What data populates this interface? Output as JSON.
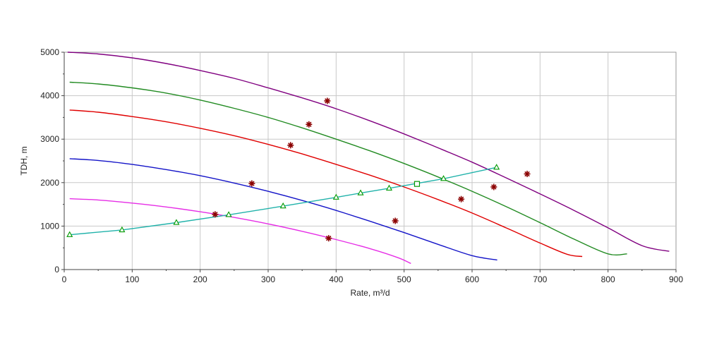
{
  "chart_data": {
    "type": "line",
    "title": "",
    "xlabel": "Rate, m³/d",
    "ylabel": "TDH, m",
    "xlim": [
      0,
      900
    ],
    "ylim": [
      0,
      5000
    ],
    "x_ticks": [
      0,
      100,
      200,
      300,
      400,
      500,
      600,
      700,
      800,
      900
    ],
    "y_ticks": [
      0,
      1000,
      2000,
      3000,
      4000,
      5000
    ],
    "x_tick_labels": [
      "0",
      "100",
      "200",
      "300",
      "400",
      "500",
      "600",
      "700",
      "800",
      "900"
    ],
    "y_tick_labels": [
      "0",
      "1000",
      "2000",
      "3000",
      "4000",
      "5000"
    ],
    "grid": true,
    "legend": "none",
    "series": [
      {
        "kind": "pump-curve",
        "color": "#800080",
        "points": [
          [
            5,
            5000
          ],
          [
            50,
            4960
          ],
          [
            100,
            4870
          ],
          [
            150,
            4740
          ],
          [
            200,
            4580
          ],
          [
            250,
            4400
          ],
          [
            300,
            4180
          ],
          [
            350,
            3950
          ],
          [
            400,
            3700
          ],
          [
            450,
            3420
          ],
          [
            500,
            3120
          ],
          [
            550,
            2800
          ],
          [
            600,
            2470
          ],
          [
            650,
            2110
          ],
          [
            700,
            1740
          ],
          [
            750,
            1360
          ],
          [
            800,
            960
          ],
          [
            850,
            550
          ],
          [
            890,
            420
          ]
        ],
        "markers": [
          [
            387,
            3880
          ],
          [
            681,
            2200
          ]
        ]
      },
      {
        "kind": "pump-curve",
        "color": "#228B22",
        "points": [
          [
            8,
            4310
          ],
          [
            50,
            4270
          ],
          [
            100,
            4180
          ],
          [
            150,
            4060
          ],
          [
            200,
            3900
          ],
          [
            250,
            3710
          ],
          [
            300,
            3500
          ],
          [
            350,
            3260
          ],
          [
            400,
            3000
          ],
          [
            450,
            2730
          ],
          [
            500,
            2440
          ],
          [
            550,
            2130
          ],
          [
            600,
            1800
          ],
          [
            650,
            1450
          ],
          [
            700,
            1080
          ],
          [
            750,
            700
          ],
          [
            800,
            360
          ],
          [
            828,
            360
          ]
        ],
        "markers": [
          [
            360,
            3340
          ],
          [
            632,
            1900
          ]
        ]
      },
      {
        "kind": "pump-curve",
        "color": "#E00000",
        "points": [
          [
            8,
            3670
          ],
          [
            50,
            3620
          ],
          [
            100,
            3520
          ],
          [
            150,
            3400
          ],
          [
            200,
            3250
          ],
          [
            250,
            3080
          ],
          [
            300,
            2880
          ],
          [
            350,
            2660
          ],
          [
            400,
            2420
          ],
          [
            450,
            2170
          ],
          [
            500,
            1900
          ],
          [
            550,
            1610
          ],
          [
            600,
            1300
          ],
          [
            650,
            960
          ],
          [
            700,
            610
          ],
          [
            740,
            350
          ],
          [
            762,
            300
          ]
        ],
        "markers": [
          [
            333,
            2860
          ],
          [
            584,
            1620
          ]
        ]
      },
      {
        "kind": "pump-curve",
        "color": "#1414C8",
        "points": [
          [
            8,
            2550
          ],
          [
            50,
            2510
          ],
          [
            100,
            2420
          ],
          [
            150,
            2300
          ],
          [
            200,
            2160
          ],
          [
            250,
            1990
          ],
          [
            300,
            1800
          ],
          [
            350,
            1590
          ],
          [
            400,
            1360
          ],
          [
            450,
            1110
          ],
          [
            500,
            850
          ],
          [
            550,
            580
          ],
          [
            600,
            320
          ],
          [
            637,
            220
          ]
        ],
        "markers": [
          [
            276,
            1980
          ],
          [
            487,
            1120
          ]
        ]
      },
      {
        "kind": "pump-curve",
        "color": "#E62EE6",
        "points": [
          [
            8,
            1630
          ],
          [
            50,
            1600
          ],
          [
            100,
            1530
          ],
          [
            150,
            1440
          ],
          [
            200,
            1330
          ],
          [
            250,
            1200
          ],
          [
            300,
            1050
          ],
          [
            350,
            880
          ],
          [
            400,
            690
          ],
          [
            450,
            480
          ],
          [
            490,
            280
          ],
          [
            510,
            140
          ]
        ],
        "markers": [
          [
            222,
            1270
          ],
          [
            389,
            720
          ]
        ]
      },
      {
        "kind": "system-curve",
        "color": "#20B2AA",
        "marker_color": "#009900",
        "points": [
          [
            8,
            800
          ],
          [
            85,
            910
          ],
          [
            165,
            1080
          ],
          [
            242,
            1260
          ],
          [
            322,
            1460
          ],
          [
            400,
            1660
          ],
          [
            436,
            1760
          ],
          [
            478,
            1870
          ],
          [
            558,
            2090
          ],
          [
            636,
            2350
          ]
        ],
        "operating_point": [
          519,
          1970
        ]
      }
    ]
  }
}
